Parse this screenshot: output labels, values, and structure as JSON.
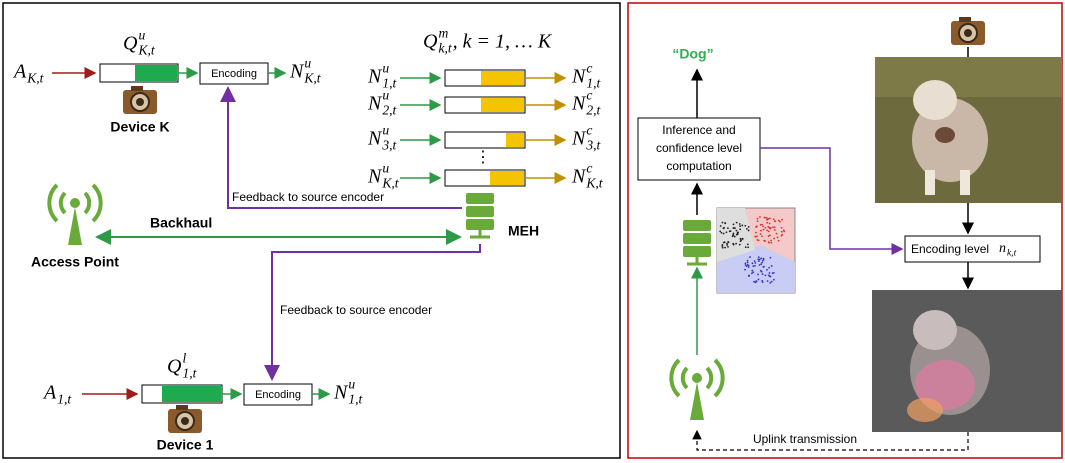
{
  "left_panel": {
    "device_k": {
      "arrival": {
        "base": "A",
        "sub": "K,t"
      },
      "queue": {
        "base": "Q",
        "sup": "u",
        "sub": "K,t"
      },
      "encoder": "Encoding",
      "output": {
        "base": "N",
        "sup": "u",
        "sub": "K,t"
      },
      "label": "Device K"
    },
    "meh_queues": {
      "title": {
        "base": "Q",
        "sup": "m",
        "sub": "k,t",
        "suffix": ", k = 1, … K"
      },
      "rows": [
        {
          "input": {
            "base": "N",
            "sup": "u",
            "sub": "1,t"
          },
          "output": {
            "base": "N",
            "sup": "c",
            "sub": "1,t"
          }
        },
        {
          "input": {
            "base": "N",
            "sup": "u",
            "sub": "2,t"
          },
          "output": {
            "base": "N",
            "sup": "c",
            "sub": "2,t"
          }
        },
        {
          "input": {
            "base": "N",
            "sup": "u",
            "sub": "3,t"
          },
          "output": {
            "base": "N",
            "sup": "c",
            "sub": "3,t"
          }
        },
        {
          "input": {
            "base": "N",
            "sup": "u",
            "sub": "K,t"
          },
          "output": {
            "base": "N",
            "sup": "c",
            "sub": "K,t"
          }
        }
      ],
      "ellipsis": "⋮"
    },
    "feedback_top": "Feedback to source encoder",
    "backhaul": "Backhaul",
    "meh": "MEH",
    "access_point": "Access Point",
    "feedback_bottom": "Feedback to source encoder",
    "device_1": {
      "arrival": {
        "base": "A",
        "sub": "1,t"
      },
      "queue": {
        "base": "Q",
        "sup": "l",
        "sub": "1,t"
      },
      "encoder": "Encoding",
      "output": {
        "base": "N",
        "sup": "u",
        "sub": "1,t"
      },
      "label": "Device 1"
    }
  },
  "right_panel": {
    "result": "“Dog”",
    "inference": [
      "Inference and",
      "confidence level",
      "computation"
    ],
    "encoding_level": {
      "text": "Encoding level",
      "var": {
        "base": "n",
        "sub": "k,t"
      }
    },
    "uplink": "Uplink transmission"
  }
}
